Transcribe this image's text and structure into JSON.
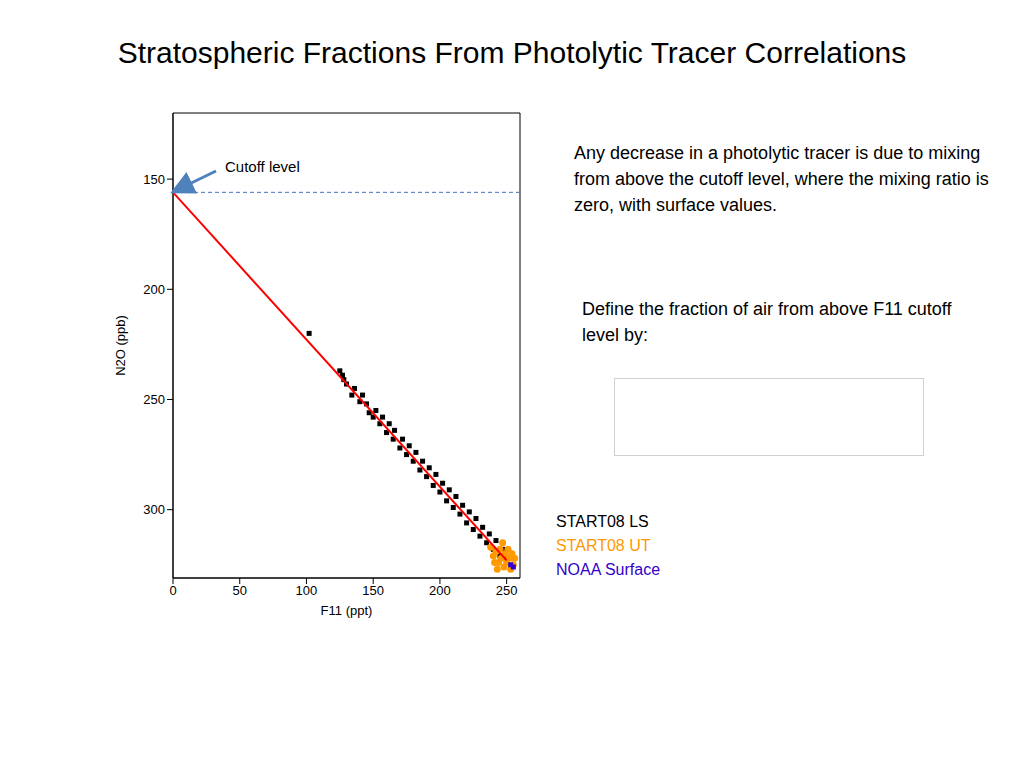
{
  "chart_data": {
    "type": "scatter",
    "title": "Stratospheric Fractions From Photolytic Tracer Correlations",
    "x_label": "F11 (ppt)",
    "y_label": "N2O (ppb)",
    "xlim": [
      0,
      260
    ],
    "ylim": [
      120,
      331
    ],
    "xticks": [
      0,
      50,
      100,
      150,
      200,
      250
    ],
    "yticks": [
      150,
      200,
      250,
      300
    ],
    "y_reversed": true,
    "grid": false,
    "annotation": "Cutoff level",
    "cutoff_level": 156,
    "text_1": "Any decrease in a photolytic tracer is due to mixing from above the cutoff level, where the mixing ratio is zero, with surface values.",
    "text_2": "Define the fraction of air from above F11 cutoff level by:",
    "fit_line": {
      "color": "#ff0000",
      "values": [
        [
          0,
          156
        ],
        [
          250,
          323
        ]
      ]
    },
    "series": [
      {
        "name": "START08 LS",
        "color": "#000000",
        "marker": "square",
        "values": [
          [
            102,
            220
          ],
          [
            125,
            237
          ],
          [
            127,
            239
          ],
          [
            128,
            241
          ],
          [
            130,
            243
          ],
          [
            136,
            245
          ],
          [
            134,
            248
          ],
          [
            140,
            251
          ],
          [
            142,
            248
          ],
          [
            145,
            252
          ],
          [
            147,
            256
          ],
          [
            150,
            258
          ],
          [
            152,
            255
          ],
          [
            155,
            261
          ],
          [
            157,
            258
          ],
          [
            160,
            265
          ],
          [
            162,
            261
          ],
          [
            165,
            268
          ],
          [
            166,
            264
          ],
          [
            170,
            272
          ],
          [
            172,
            268
          ],
          [
            175,
            275
          ],
          [
            177,
            271
          ],
          [
            180,
            278
          ],
          [
            182,
            274
          ],
          [
            185,
            282
          ],
          [
            187,
            278
          ],
          [
            190,
            285
          ],
          [
            192,
            281
          ],
          [
            195,
            289
          ],
          [
            197,
            284
          ],
          [
            200,
            292
          ],
          [
            202,
            288
          ],
          [
            205,
            296
          ],
          [
            207,
            291
          ],
          [
            210,
            299
          ],
          [
            212,
            294
          ],
          [
            215,
            302
          ],
          [
            217,
            298
          ],
          [
            220,
            306
          ],
          [
            222,
            301
          ],
          [
            225,
            309
          ],
          [
            227,
            304
          ],
          [
            230,
            312
          ],
          [
            232,
            308
          ],
          [
            235,
            315
          ],
          [
            237,
            311
          ],
          [
            240,
            318
          ],
          [
            242,
            314
          ],
          [
            245,
            321
          ],
          [
            247,
            318
          ],
          [
            250,
            322
          ]
        ]
      },
      {
        "name": "START08 UT",
        "color": "#ff9900",
        "marker": "circle",
        "values": [
          [
            238,
            317
          ],
          [
            240,
            321
          ],
          [
            242,
            319
          ],
          [
            244,
            324
          ],
          [
            245,
            318
          ],
          [
            246,
            322
          ],
          [
            248,
            326
          ],
          [
            249,
            320
          ],
          [
            250,
            324
          ],
          [
            251,
            318
          ],
          [
            252,
            322
          ],
          [
            253,
            327
          ],
          [
            254,
            320
          ],
          [
            255,
            325
          ],
          [
            243,
            327
          ],
          [
            247,
            315
          ],
          [
            241,
            324
          ],
          [
            256,
            322
          ]
        ]
      },
      {
        "name": "NOAA Surface",
        "color": "#3300cc",
        "marker": "square",
        "values": [
          [
            253,
            325
          ],
          [
            255,
            326
          ]
        ]
      }
    ]
  }
}
